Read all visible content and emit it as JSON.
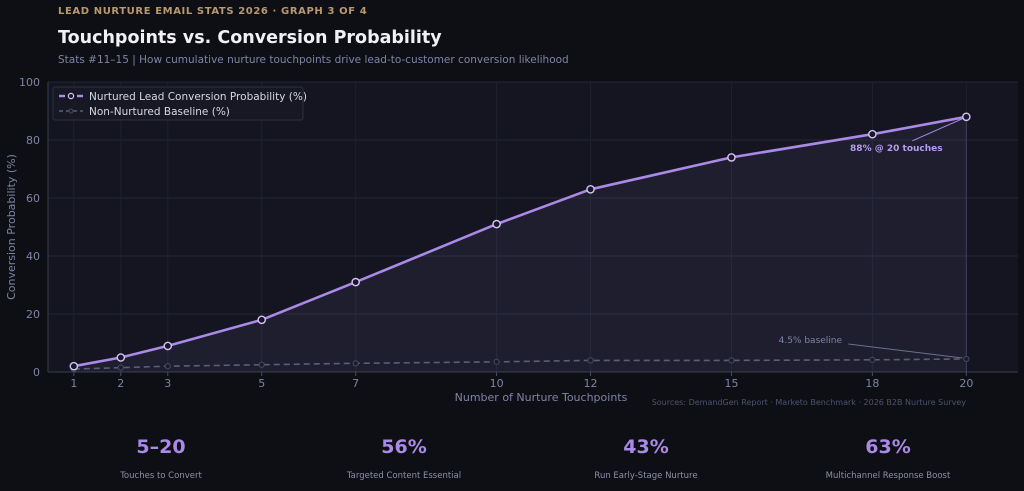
{
  "header": {
    "eyebrow": "LEAD NURTURE EMAIL STATS 2026  ·  GRAPH 3 OF 4",
    "title": "Touchpoints vs. Conversion Probability",
    "subtitle": "Stats #11–15 | How cumulative nurture touchpoints drive lead-to-customer conversion likelihood"
  },
  "colors": {
    "background": "#0e0f14",
    "plot_background": "#141520",
    "nurtured": "#a98ae6",
    "baseline": "#5a5f77",
    "eyebrow": "#b89a6e"
  },
  "chart_data": {
    "type": "line",
    "x": [
      1,
      2,
      3,
      5,
      7,
      10,
      12,
      15,
      18,
      20
    ],
    "xticks": [
      1,
      2,
      3,
      5,
      7,
      10,
      12,
      15,
      18,
      20
    ],
    "series": [
      {
        "name": "Nurtured Lead Conversion Probability (%)",
        "values": [
          2,
          5,
          9,
          18,
          31,
          51,
          63,
          74,
          82,
          88
        ],
        "style": "solid",
        "fill": true
      },
      {
        "name": "Non-Nurtured Baseline (%)",
        "values": [
          1,
          1.5,
          2,
          2.5,
          3,
          3.5,
          4,
          4,
          4.2,
          4.5
        ],
        "style": "dashed"
      }
    ],
    "xlabel": "Number of Nurture Touchpoints",
    "ylabel": "Conversion Probability (%)",
    "yticks": [
      0,
      20,
      40,
      60,
      80,
      100
    ],
    "xlim": [
      0.45,
      21.1
    ],
    "ylim": [
      0,
      100
    ],
    "grid": true,
    "legend": "top-left",
    "annotations": [
      {
        "text": "88% @ 20 touches",
        "x": 20,
        "y": 88,
        "series": 0
      },
      {
        "text": "4.5% baseline",
        "x": 20,
        "y": 4.5,
        "series": 1
      }
    ],
    "source": "Sources: DemandGen Report · Marketo Benchmark · 2026 B2B Nurture Survey"
  },
  "stats": [
    {
      "value": "5–20",
      "label": "Touches to Convert"
    },
    {
      "value": "56%",
      "label": "Targeted Content Essential"
    },
    {
      "value": "43%",
      "label": "Run Early-Stage Nurture"
    },
    {
      "value": "63%",
      "label": "Multichannel Response Boost"
    }
  ]
}
